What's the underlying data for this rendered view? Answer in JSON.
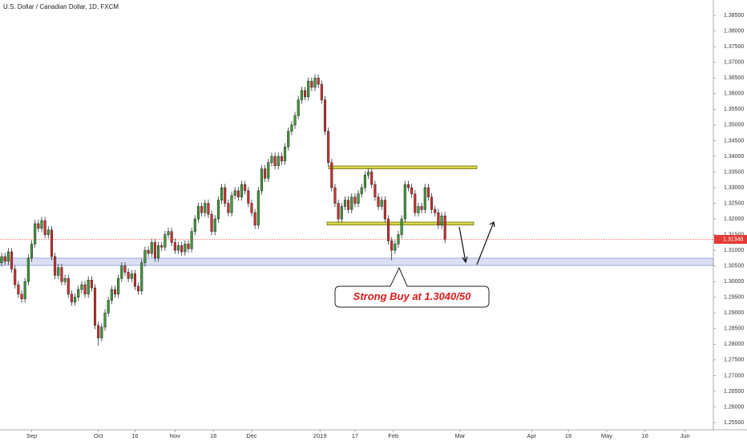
{
  "chart_data": {
    "type": "candlestick",
    "title": "U.S. Dollar / Canadian Dollar, 1D, FXCM",
    "up_color": "#3f9b36",
    "down_color": "#d32f2f",
    "open": [
      1.306,
      1.308,
      1.3065,
      1.3095,
      1.304,
      1.299,
      1.296,
      1.2945,
      1.3,
      1.3075,
      1.312,
      1.3185,
      1.317,
      1.3195,
      1.315,
      1.3165,
      1.308,
      1.302,
      1.3045,
      1.3,
      1.301,
      1.296,
      1.2935,
      1.295,
      1.2975,
      1.299,
      1.296,
      1.3005,
      1.298,
      1.286,
      1.282,
      1.2855,
      1.29,
      1.294,
      1.2975,
      1.296,
      1.301,
      1.305,
      1.303,
      1.301,
      1.3025,
      1.2985,
      1.297,
      1.306,
      1.31,
      1.309,
      1.3125,
      1.3075,
      1.3115,
      1.311,
      1.315,
      1.316,
      1.3125,
      1.31,
      1.3115,
      1.3095,
      1.312,
      1.3105,
      1.316,
      1.32,
      1.324,
      1.322,
      1.325,
      1.3215,
      1.316,
      1.32,
      1.326,
      1.33,
      1.325,
      1.322,
      1.3275,
      1.329,
      1.327,
      1.331,
      1.329,
      1.325,
      1.322,
      1.318,
      1.329,
      1.336,
      1.333,
      1.338,
      1.34,
      1.337,
      1.34,
      1.3385,
      1.343,
      1.348,
      1.35,
      1.353,
      1.358,
      1.361,
      1.359,
      1.364,
      1.362,
      1.365,
      1.363,
      1.358,
      1.348,
      1.338,
      1.33,
      1.325,
      1.32,
      1.324,
      1.326,
      1.323,
      1.327,
      1.325,
      1.328,
      1.33,
      1.334,
      1.335,
      1.331,
      1.327,
      1.324,
      1.326,
      1.32,
      1.313,
      1.31,
      1.312,
      1.315,
      1.32,
      1.331,
      1.33,
      1.328,
      1.322,
      1.324,
      1.323,
      1.33,
      1.327,
      1.323,
      1.322,
      1.318,
      1.321
    ],
    "high": [
      1.3092,
      1.3092,
      1.3107,
      1.3107,
      1.3052,
      1.3002,
      1.2972,
      1.3012,
      1.3087,
      1.3132,
      1.3197,
      1.3197,
      1.3207,
      1.3207,
      1.3177,
      1.3177,
      1.3092,
      1.3057,
      1.3057,
      1.3022,
      1.3022,
      1.2972,
      1.2962,
      1.2987,
      1.3002,
      1.3002,
      1.3017,
      1.3017,
      1.2992,
      1.2872,
      1.2867,
      1.2912,
      1.2952,
      1.2987,
      1.2987,
      1.3022,
      1.3062,
      1.3062,
      1.3042,
      1.3037,
      1.3037,
      1.2997,
      1.3072,
      1.3112,
      1.3112,
      1.3137,
      1.3137,
      1.3127,
      1.3127,
      1.3162,
      1.3172,
      1.3172,
      1.3137,
      1.3127,
      1.3127,
      1.3132,
      1.3132,
      1.3172,
      1.3212,
      1.3252,
      1.3252,
      1.3262,
      1.3262,
      1.3227,
      1.3212,
      1.3272,
      1.3312,
      1.3312,
      1.3262,
      1.3287,
      1.3302,
      1.3302,
      1.3322,
      1.3322,
      1.3302,
      1.3262,
      1.3232,
      1.3302,
      1.3372,
      1.3372,
      1.3392,
      1.3412,
      1.3412,
      1.3412,
      1.3412,
      1.3442,
      1.3492,
      1.3512,
      1.3542,
      1.3592,
      1.3622,
      1.3622,
      1.3652,
      1.3652,
      1.3662,
      1.3662,
      1.3642,
      1.3592,
      1.3492,
      1.3392,
      1.3312,
      1.3262,
      1.3252,
      1.3272,
      1.3272,
      1.3282,
      1.3282,
      1.3292,
      1.3312,
      1.3352,
      1.3362,
      1.3362,
      1.3322,
      1.3282,
      1.3272,
      1.3272,
      1.3212,
      1.3142,
      1.3132,
      1.3162,
      1.3212,
      1.3322,
      1.3322,
      1.3312,
      1.3292,
      1.3252,
      1.3252,
      1.3312,
      1.3312,
      1.3282,
      1.3242,
      1.3232,
      1.3222,
      1.3222
    ],
    "low": [
      1.3048,
      1.3053,
      1.3053,
      1.3028,
      1.2978,
      1.2948,
      1.2933,
      1.2933,
      1.2988,
      1.3063,
      1.3108,
      1.3158,
      1.3158,
      1.3138,
      1.3138,
      1.3068,
      1.3008,
      1.3008,
      1.2988,
      1.2988,
      1.2948,
      1.2923,
      1.2923,
      1.2938,
      1.2963,
      1.2948,
      1.2948,
      1.2968,
      1.2848,
      1.2795,
      1.2808,
      1.2843,
      1.2888,
      1.2928,
      1.2948,
      1.2948,
      1.2998,
      1.3018,
      1.2998,
      1.2998,
      1.2973,
      1.2958,
      1.2958,
      1.3048,
      1.3078,
      1.3078,
      1.3063,
      1.3063,
      1.3098,
      1.3098,
      1.3138,
      1.3113,
      1.3088,
      1.3088,
      1.3083,
      1.3083,
      1.3093,
      1.3093,
      1.3148,
      1.3188,
      1.3208,
      1.3208,
      1.3203,
      1.3148,
      1.3148,
      1.3188,
      1.3248,
      1.3238,
      1.3208,
      1.3208,
      1.3263,
      1.3258,
      1.3258,
      1.3278,
      1.3238,
      1.3208,
      1.3168,
      1.3168,
      1.3278,
      1.3318,
      1.3318,
      1.3368,
      1.3358,
      1.3358,
      1.3373,
      1.3373,
      1.3418,
      1.3468,
      1.3488,
      1.3518,
      1.3568,
      1.3578,
      1.3578,
      1.3608,
      1.3608,
      1.3618,
      1.3568,
      1.3468,
      1.3368,
      1.3288,
      1.3238,
      1.3188,
      1.3188,
      1.3228,
      1.3218,
      1.3218,
      1.3238,
      1.3238,
      1.3268,
      1.3288,
      1.3328,
      1.3298,
      1.3258,
      1.3228,
      1.3228,
      1.3188,
      1.3118,
      1.3068,
      1.3088,
      1.3108,
      1.3138,
      1.3188,
      1.3288,
      1.3268,
      1.3208,
      1.3208,
      1.3218,
      1.3218,
      1.3258,
      1.3218,
      1.3208,
      1.3168,
      1.3168,
      1.3123
    ],
    "close": [
      1.308,
      1.3065,
      1.3095,
      1.304,
      1.299,
      1.296,
      1.2945,
      1.3,
      1.3075,
      1.312,
      1.3185,
      1.317,
      1.3195,
      1.315,
      1.3165,
      1.308,
      1.302,
      1.3045,
      1.3,
      1.301,
      1.296,
      1.2935,
      1.295,
      1.2975,
      1.299,
      1.296,
      1.3005,
      1.298,
      1.286,
      1.282,
      1.2855,
      1.29,
      1.294,
      1.2975,
      1.296,
      1.301,
      1.305,
      1.303,
      1.301,
      1.3025,
      1.2985,
      1.297,
      1.306,
      1.31,
      1.309,
      1.3125,
      1.3075,
      1.3115,
      1.311,
      1.315,
      1.316,
      1.3125,
      1.31,
      1.3115,
      1.3095,
      1.312,
      1.3105,
      1.316,
      1.32,
      1.324,
      1.322,
      1.325,
      1.3215,
      1.316,
      1.32,
      1.326,
      1.33,
      1.325,
      1.322,
      1.3275,
      1.329,
      1.327,
      1.331,
      1.329,
      1.325,
      1.322,
      1.318,
      1.329,
      1.336,
      1.333,
      1.338,
      1.34,
      1.337,
      1.34,
      1.3385,
      1.343,
      1.348,
      1.35,
      1.353,
      1.358,
      1.361,
      1.359,
      1.364,
      1.362,
      1.365,
      1.363,
      1.358,
      1.348,
      1.338,
      1.33,
      1.325,
      1.32,
      1.324,
      1.326,
      1.323,
      1.327,
      1.325,
      1.328,
      1.33,
      1.334,
      1.335,
      1.331,
      1.327,
      1.324,
      1.326,
      1.32,
      1.313,
      1.31,
      1.312,
      1.315,
      1.32,
      1.331,
      1.33,
      1.328,
      1.322,
      1.324,
      1.323,
      1.33,
      1.327,
      1.323,
      1.322,
      1.318,
      1.321,
      1.3135
    ],
    "last_price": 1.31348,
    "annotations": [
      "Strong Buy at 1.3040/50"
    ],
    "xlim": [
      -0.5,
      213.5
    ],
    "xticks": [
      {
        "value": 9,
        "label": "Sep"
      },
      {
        "value": 29,
        "label": "Oct"
      },
      {
        "value": 40,
        "label": "16"
      },
      {
        "value": 52,
        "label": "Nov"
      },
      {
        "value": 63.5,
        "label": "16"
      },
      {
        "value": 75,
        "label": "Dec"
      },
      {
        "value": 95.5,
        "label": "2019"
      },
      {
        "value": 106,
        "label": "17"
      },
      {
        "value": 117.5,
        "label": "Feb"
      },
      {
        "value": 137.5,
        "label": "Mar"
      },
      {
        "value": 159,
        "label": "Apr"
      },
      {
        "value": 170,
        "label": "16"
      },
      {
        "value": 181.5,
        "label": "May"
      },
      {
        "value": 193,
        "label": "16"
      },
      {
        "value": 205,
        "label": "Jun"
      }
    ],
    "ylim": [
      1.2527,
      1.3899
    ],
    "yticks": [
      {
        "value": 1.255,
        "label": "1.25500"
      },
      {
        "value": 1.26,
        "label": "1.26000"
      },
      {
        "value": 1.265,
        "label": "1.26500"
      },
      {
        "value": 1.27,
        "label": "1.27000"
      },
      {
        "value": 1.275,
        "label": "1.27500"
      },
      {
        "value": 1.28,
        "label": "1.28000"
      },
      {
        "value": 1.285,
        "label": "1.28500"
      },
      {
        "value": 1.29,
        "label": "1.29000"
      },
      {
        "value": 1.295,
        "label": "1.29500"
      },
      {
        "value": 1.3,
        "label": "1.30000"
      },
      {
        "value": 1.305,
        "label": "1.30500"
      },
      {
        "value": 1.31,
        "label": "1.31000"
      },
      {
        "value": 1.315,
        "label": "1.31500"
      },
      {
        "value": 1.32,
        "label": "1.32000"
      },
      {
        "value": 1.325,
        "label": "1.32500"
      },
      {
        "value": 1.33,
        "label": "1.33000"
      },
      {
        "value": 1.335,
        "label": "1.33500"
      },
      {
        "value": 1.34,
        "label": "1.34000"
      },
      {
        "value": 1.345,
        "label": "1.34500"
      },
      {
        "value": 1.35,
        "label": "1.35000"
      },
      {
        "value": 1.355,
        "label": "1.35500"
      },
      {
        "value": 1.36,
        "label": "1.36000"
      },
      {
        "value": 1.365,
        "label": "1.36500"
      },
      {
        "value": 1.37,
        "label": "1.37000"
      },
      {
        "value": 1.375,
        "label": "1.37500"
      },
      {
        "value": 1.38,
        "label": "1.38000"
      },
      {
        "value": 1.385,
        "label": "1.38500"
      }
    ],
    "grid": false
  }
}
